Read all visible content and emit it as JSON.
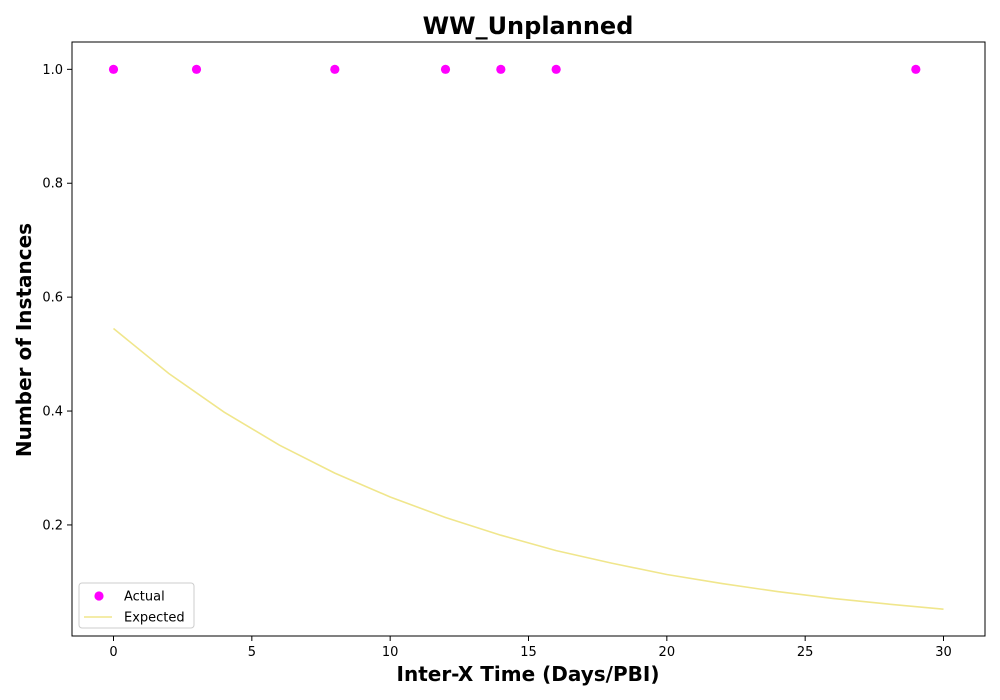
{
  "chart_data": {
    "type": "scatter",
    "title": "WW_Unplanned",
    "xlabel": "Inter-X Time (Days/PBI)",
    "ylabel": "Number of Instances",
    "xlim": [
      -1.5,
      31.5
    ],
    "ylim": [
      0.005,
      1.048
    ],
    "xticks": [
      0,
      5,
      10,
      15,
      20,
      25,
      30
    ],
    "yticks": [
      0.2,
      0.4,
      0.6,
      0.8,
      1.0
    ],
    "xtick_labels": [
      "0",
      "5",
      "10",
      "15",
      "20",
      "25",
      "30"
    ],
    "ytick_labels": [
      "0.2",
      "0.4",
      "0.6",
      "0.8",
      "1.0"
    ],
    "grid": false,
    "legend_position": "lower-left",
    "series": [
      {
        "name": "Actual",
        "kind": "scatter",
        "color": "#ff00ff",
        "x": [
          0,
          3,
          8,
          12,
          14,
          16,
          29
        ],
        "y": [
          1.0,
          1.0,
          1.0,
          1.0,
          1.0,
          1.0,
          1.0
        ]
      },
      {
        "name": "Expected",
        "kind": "line",
        "color": "#f0e68c",
        "x": [
          0,
          2,
          4,
          6,
          8,
          10,
          12,
          14,
          16,
          18,
          20,
          22,
          24,
          26,
          28,
          30
        ],
        "y": [
          0.545,
          0.466,
          0.398,
          0.34,
          0.291,
          0.249,
          0.213,
          0.182,
          0.155,
          0.133,
          0.113,
          0.097,
          0.083,
          0.071,
          0.061,
          0.052
        ]
      }
    ]
  }
}
